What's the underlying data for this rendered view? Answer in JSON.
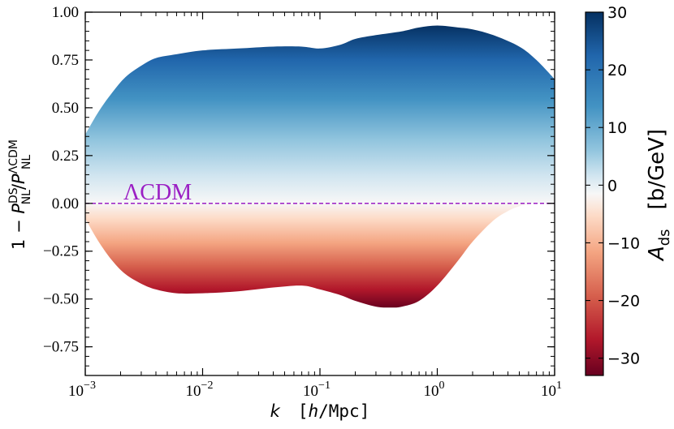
{
  "chart_data": {
    "type": "area",
    "xlabel": "k   [h/Mpc]",
    "xlabel_parts": {
      "var": "k",
      "unit_open": "[",
      "unit_h": "h",
      "unit_rest": "/Mpc]"
    },
    "ylabel": "1 − P_NL^DS / P_NL^ΛCDM",
    "ylabel_parts": {
      "prefix": "1 − ",
      "P": "P",
      "sup_ds": "DS",
      "sub_nl": "NL",
      "slash": "/",
      "sup_lcdm": "ΛCDM"
    },
    "x_scale": "log",
    "xlim": [
      0.001,
      10
    ],
    "ylim": [
      -0.9,
      1.0
    ],
    "x_ticks": [
      {
        "value": 0.001,
        "base": "10",
        "exp": "−3"
      },
      {
        "value": 0.01,
        "base": "10",
        "exp": "−2"
      },
      {
        "value": 0.1,
        "base": "10",
        "exp": "−1"
      },
      {
        "value": 1,
        "base": "10",
        "exp": "0"
      },
      {
        "value": 10,
        "base": "10",
        "exp": "1"
      }
    ],
    "y_ticks": [
      {
        "value": 1.0,
        "label": "1.00"
      },
      {
        "value": 0.75,
        "label": "0.75"
      },
      {
        "value": 0.5,
        "label": "0.50"
      },
      {
        "value": 0.25,
        "label": "0.25"
      },
      {
        "value": 0.0,
        "label": "0.00"
      },
      {
        "value": -0.25,
        "label": "−0.25"
      },
      {
        "value": -0.5,
        "label": "−0.50"
      },
      {
        "value": -0.75,
        "label": "−0.75"
      }
    ],
    "upper_envelope": {
      "k": [
        0.001,
        0.0013,
        0.0017,
        0.0022,
        0.003,
        0.004,
        0.006,
        0.01,
        0.02,
        0.04,
        0.07,
        0.1,
        0.15,
        0.2,
        0.3,
        0.5,
        0.7,
        1.0,
        1.5,
        2.0,
        3.0,
        5.0,
        7.0,
        10.0
      ],
      "y": [
        0.36,
        0.48,
        0.58,
        0.66,
        0.72,
        0.76,
        0.78,
        0.8,
        0.81,
        0.82,
        0.82,
        0.81,
        0.83,
        0.86,
        0.88,
        0.9,
        0.92,
        0.93,
        0.92,
        0.91,
        0.88,
        0.82,
        0.75,
        0.65
      ]
    },
    "lower_envelope": {
      "k": [
        0.001,
        0.0013,
        0.0017,
        0.0022,
        0.003,
        0.004,
        0.006,
        0.01,
        0.02,
        0.04,
        0.07,
        0.1,
        0.15,
        0.2,
        0.3,
        0.4,
        0.5,
        0.7,
        1.0,
        1.5,
        2.0,
        3.0,
        4.0,
        5.0,
        6.0,
        7.0,
        8.0,
        10.0
      ],
      "y": [
        -0.08,
        -0.2,
        -0.3,
        -0.37,
        -0.42,
        -0.45,
        -0.47,
        -0.47,
        -0.46,
        -0.44,
        -0.43,
        -0.45,
        -0.48,
        -0.51,
        -0.54,
        -0.545,
        -0.54,
        -0.51,
        -0.43,
        -0.3,
        -0.2,
        -0.09,
        -0.04,
        -0.015,
        -0.004,
        0.0,
        0.0,
        0.0
      ]
    },
    "reference_line": {
      "y": 0.0,
      "label": "ΛCDM",
      "style": "dashed",
      "color": "#9b1fc4"
    },
    "colorbar": {
      "label_var": "A",
      "label_sub": "ds",
      "label_unit": "[b/GeV]",
      "label": "A_ds   [b/GeV]",
      "range": [
        -33,
        30
      ],
      "ticks": [
        {
          "value": 30,
          "label": "30"
        },
        {
          "value": 20,
          "label": "20"
        },
        {
          "value": 10,
          "label": "10"
        },
        {
          "value": 0,
          "label": "0"
        },
        {
          "value": -10,
          "label": "−10"
        },
        {
          "value": -20,
          "label": "−20"
        },
        {
          "value": -30,
          "label": "−30"
        }
      ],
      "colormap": "RdBu",
      "colors": {
        "min": "#67001f",
        "mid": "#f7f7f7",
        "max": "#053061"
      }
    },
    "grid": false,
    "legend": "none"
  }
}
